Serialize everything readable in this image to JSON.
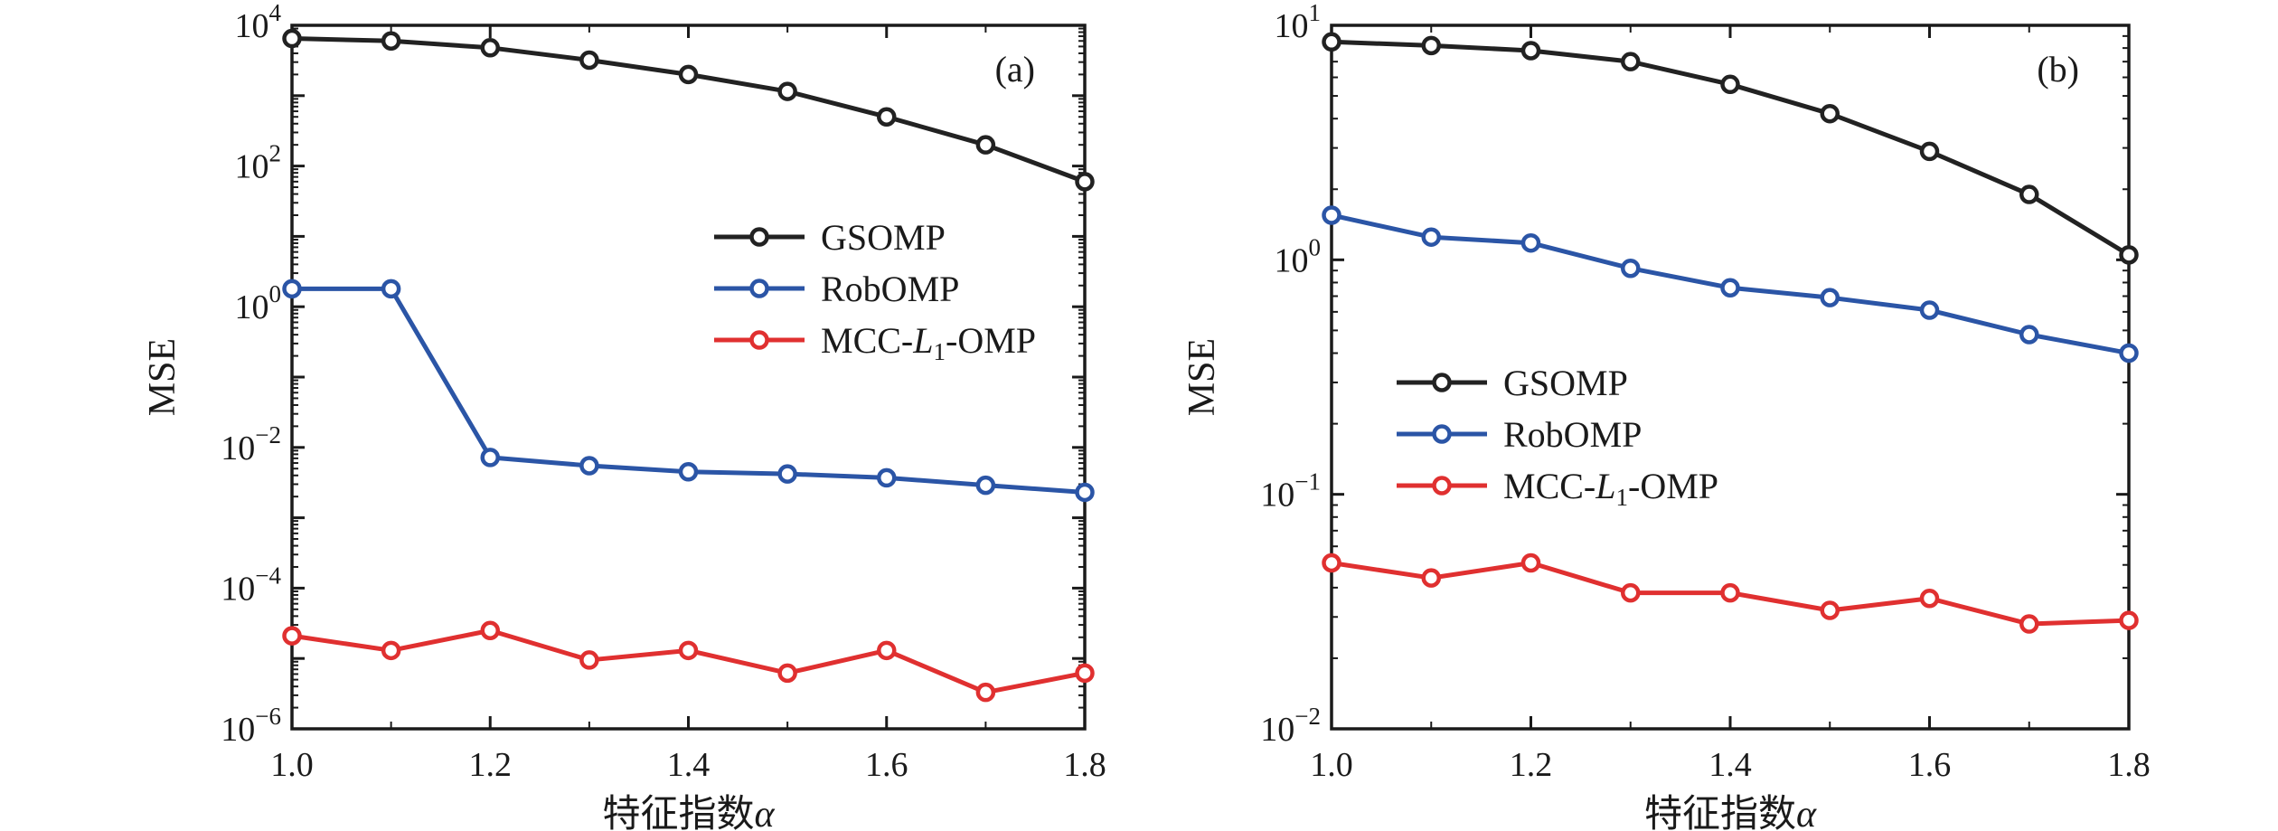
{
  "chart_data": [
    {
      "type": "line",
      "panel_label": "(a)",
      "xlabel": "特征指数α",
      "ylabel": "MSE",
      "yscale": "log",
      "xlim": [
        1.0,
        1.8
      ],
      "ylim_exp": [
        -6,
        4
      ],
      "x_ticks": [
        "1.0",
        "1.2",
        "1.4",
        "1.6",
        "1.8"
      ],
      "y_ticks": [
        {
          "base": "10",
          "exp": "4"
        },
        {
          "base": "10",
          "exp": "2"
        },
        {
          "base": "10",
          "exp": "0"
        },
        {
          "base": "10",
          "exp": "−2"
        },
        {
          "base": "10",
          "exp": "−4"
        },
        {
          "base": "10",
          "exp": "−6"
        }
      ],
      "legend_position": "center-right",
      "x": [
        1.0,
        1.1,
        1.2,
        1.3,
        1.4,
        1.5,
        1.6,
        1.7,
        1.8
      ],
      "series": [
        {
          "name": "GSOMP",
          "name_parts": [
            "GSOMP",
            "",
            ""
          ],
          "color": "#222222",
          "values": [
            6500,
            6000,
            4800,
            3200,
            2000,
            1150,
            500,
            200,
            60
          ]
        },
        {
          "name": "RobOMP",
          "name_parts": [
            "RobOMP",
            "",
            ""
          ],
          "color": "#2b55a6",
          "values": [
            1.8,
            1.8,
            0.0072,
            0.0055,
            0.0045,
            0.0042,
            0.0037,
            0.0029,
            0.0023
          ]
        },
        {
          "name": "MCC-L1-OMP",
          "name_parts": [
            "MCC-",
            "L",
            "1",
            "-OMP"
          ],
          "color": "#e03030",
          "values": [
            2.1e-05,
            1.3e-05,
            2.5e-05,
            9.5e-06,
            1.3e-05,
            6.2e-06,
            1.3e-05,
            3.3e-06,
            6.2e-06
          ]
        }
      ]
    },
    {
      "type": "line",
      "panel_label": "(b)",
      "xlabel": "特征指数α",
      "ylabel": "MSE",
      "yscale": "log",
      "xlim": [
        1.0,
        1.8
      ],
      "ylim_exp": [
        -2,
        1
      ],
      "x_ticks": [
        "1.0",
        "1.2",
        "1.4",
        "1.6",
        "1.8"
      ],
      "y_ticks": [
        {
          "base": "10",
          "exp": "1"
        },
        {
          "base": "10",
          "exp": "0"
        },
        {
          "base": "10",
          "exp": "−1"
        },
        {
          "base": "10",
          "exp": "−2"
        }
      ],
      "legend_position": "center-left",
      "x": [
        1.0,
        1.1,
        1.2,
        1.3,
        1.4,
        1.5,
        1.6,
        1.7,
        1.8
      ],
      "series": [
        {
          "name": "GSOMP",
          "name_parts": [
            "GSOMP",
            "",
            ""
          ],
          "color": "#222222",
          "values": [
            8.5,
            8.2,
            7.8,
            7.0,
            5.6,
            4.2,
            2.9,
            1.9,
            1.05
          ]
        },
        {
          "name": "RobOMP",
          "name_parts": [
            "RobOMP",
            "",
            ""
          ],
          "color": "#2b55a6",
          "values": [
            1.55,
            1.25,
            1.18,
            0.92,
            0.76,
            0.69,
            0.61,
            0.48,
            0.4
          ]
        },
        {
          "name": "MCC-L1-OMP",
          "name_parts": [
            "MCC-",
            "L",
            "1",
            "-OMP"
          ],
          "color": "#e03030",
          "values": [
            0.051,
            0.044,
            0.051,
            0.038,
            0.038,
            0.032,
            0.036,
            0.028,
            0.029
          ]
        }
      ]
    }
  ]
}
